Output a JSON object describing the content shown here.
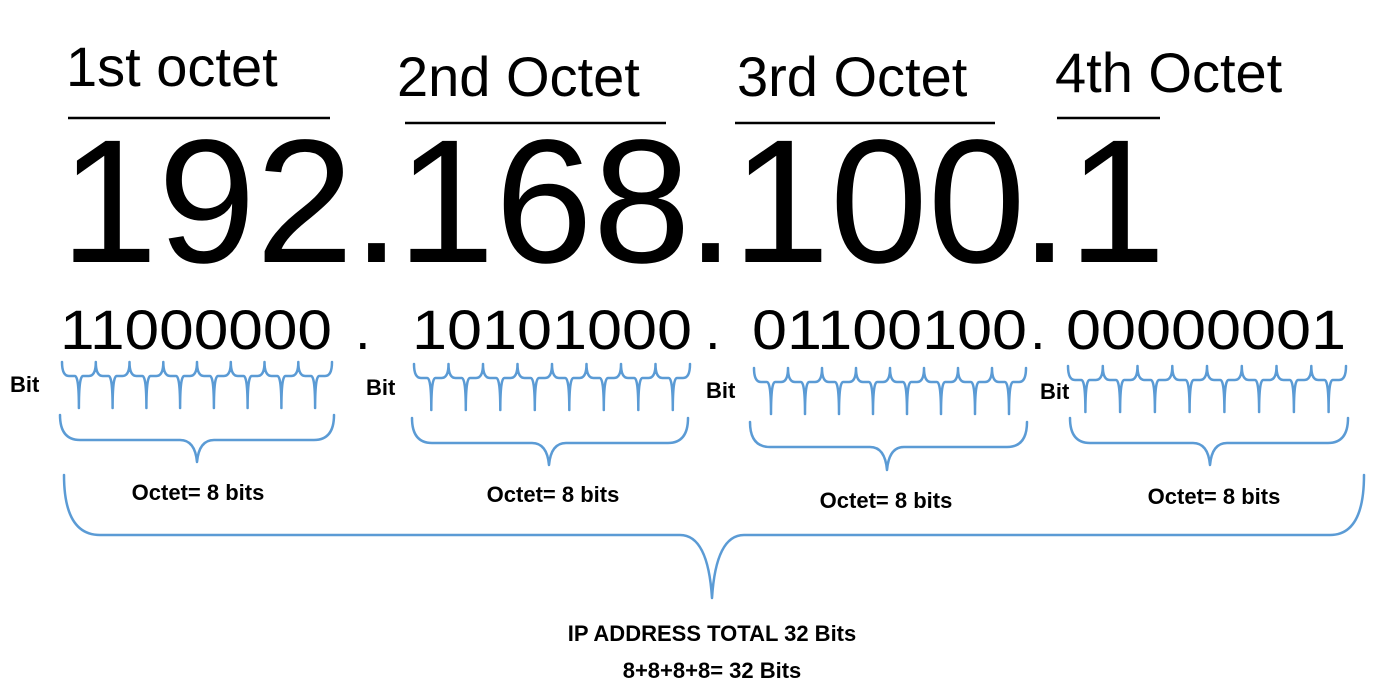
{
  "octets": [
    {
      "header": "1st octet",
      "decimal": "192",
      "binary": "11000000",
      "bit_label": "Bit",
      "octet_label": "Octet= 8 bits"
    },
    {
      "header": "2nd Octet",
      "decimal": "168",
      "binary": "10101000",
      "bit_label": "Bit",
      "octet_label": "Octet= 8 bits"
    },
    {
      "header": "3rd Octet",
      "decimal": "100",
      "binary": "01100100",
      "bit_label": "Bit",
      "octet_label": "Octet= 8 bits"
    },
    {
      "header": "4th Octet",
      "decimal": "1",
      "binary": "00000001",
      "bit_label": "Bit",
      "octet_label": "Octet= 8 bits"
    }
  ],
  "separator": ".",
  "total": {
    "line1": "IP ADDRESS TOTAL 32 Bits",
    "line2": "8+8+8+8= 32 Bits"
  },
  "colors": {
    "brace": "#5b9bd5",
    "text": "#000000"
  }
}
